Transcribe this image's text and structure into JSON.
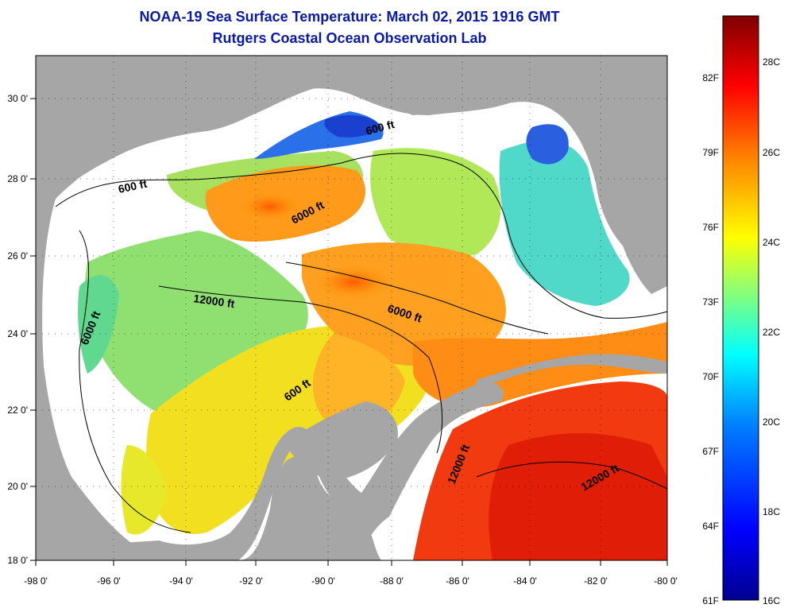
{
  "header": {
    "title": "NOAA-19 Sea Surface Temperature:  March 02, 2015 1916 GMT",
    "subtitle": "Rutgers Coastal Ocean Observation Lab"
  },
  "map": {
    "region": "Gulf of Mexico",
    "lon_range": [
      -98,
      -80
    ],
    "lat_range": [
      18,
      31
    ],
    "x_ticks": [
      "-98 0'",
      "-96 0'",
      "-94 0'",
      "-92 0'",
      "-90 0'",
      "-88 0'",
      "-86 0'",
      "-84 0'",
      "-82 0'",
      "-80 0'"
    ],
    "y_ticks": [
      "30 0'",
      "28 0'",
      "26 0'",
      "24 0'",
      "22 0'",
      "20 0'",
      "18 0'"
    ],
    "contour_labels": [
      "600 ft",
      "600 ft",
      "600 ft",
      "6000 ft",
      "6000 ft",
      "6000 ft",
      "12000 ft",
      "12000 ft",
      "12000 ft"
    ],
    "colors": {
      "land": "#a6a6a6",
      "cloud": "#ffffff"
    }
  },
  "colorbar": {
    "fahrenheit_labels": [
      "82F",
      "79F",
      "76F",
      "73F",
      "70F",
      "67F",
      "64F",
      "61F"
    ],
    "celsius_labels": [
      "28C",
      "26C",
      "24C",
      "22C",
      "20C",
      "18C",
      "16C"
    ],
    "range_c": [
      16,
      29.5
    ],
    "colors": [
      "#00008f",
      "#0000ff",
      "#0080ff",
      "#00ffff",
      "#80ff80",
      "#ffff00",
      "#ff8000",
      "#ff0000",
      "#800000"
    ]
  }
}
